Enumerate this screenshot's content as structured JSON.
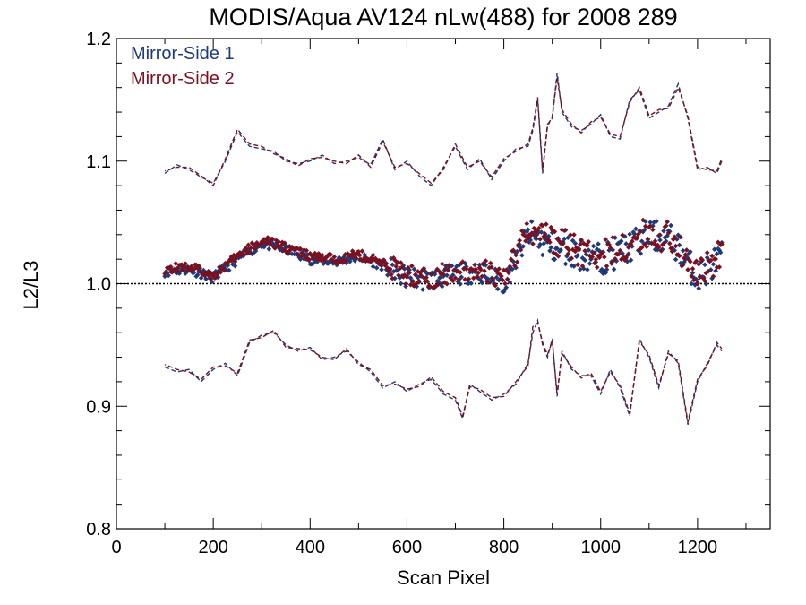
{
  "chart_data": {
    "type": "scatter",
    "title": "MODIS/Aqua AV124 nLw(488) for 2008 289",
    "xlabel": "Scan Pixel",
    "ylabel": "L2/L3",
    "xlim": [
      0,
      1350
    ],
    "ylim": [
      0.8,
      1.2
    ],
    "x_ticks": [
      0,
      200,
      400,
      600,
      800,
      1000,
      1200
    ],
    "x_tick_labels": [
      "0",
      "200",
      "400",
      "600",
      "800",
      "1000",
      "1200"
    ],
    "y_ticks": [
      0.8,
      0.9,
      1.0,
      1.1,
      1.2
    ],
    "y_tick_labels": [
      "0.8",
      "0.9",
      "1.0",
      "1.1",
      "1.2"
    ],
    "reference_line_y": 1.0,
    "legend_position": "top-left",
    "colors": {
      "mirror_side_1": "#1f3a78",
      "mirror_side_2": "#7a1020"
    },
    "series": [
      {
        "name": "Mirror-Side 1",
        "color": "#1f3a78",
        "median_x": [
          100,
          150,
          200,
          250,
          300,
          350,
          400,
          450,
          500,
          550,
          600,
          650,
          700,
          750,
          800,
          850,
          900,
          950,
          1000,
          1050,
          1100,
          1150,
          1200,
          1250
        ],
        "median_y": [
          1.01,
          1.012,
          1.005,
          1.02,
          1.033,
          1.028,
          1.02,
          1.018,
          1.022,
          1.015,
          1.005,
          1.003,
          1.008,
          1.01,
          1.0,
          1.04,
          1.03,
          1.025,
          1.02,
          1.028,
          1.04,
          1.035,
          1.005,
          1.022
        ],
        "upper_x": [
          100,
          125,
          150,
          175,
          200,
          225,
          250,
          275,
          300,
          325,
          350,
          375,
          400,
          425,
          450,
          475,
          500,
          525,
          550,
          575,
          600,
          625,
          650,
          675,
          700,
          725,
          750,
          775,
          800,
          825,
          850,
          860,
          870,
          880,
          890,
          900,
          910,
          920,
          940,
          960,
          980,
          1000,
          1020,
          1040,
          1060,
          1080,
          1100,
          1120,
          1140,
          1160,
          1180,
          1200,
          1220,
          1240,
          1250
        ],
        "upper_y": [
          1.09,
          1.097,
          1.093,
          1.087,
          1.082,
          1.1,
          1.124,
          1.112,
          1.11,
          1.108,
          1.1,
          1.098,
          1.1,
          1.105,
          1.098,
          1.1,
          1.103,
          1.097,
          1.118,
          1.093,
          1.1,
          1.088,
          1.08,
          1.095,
          1.112,
          1.093,
          1.102,
          1.085,
          1.1,
          1.11,
          1.112,
          1.125,
          1.15,
          1.09,
          1.13,
          1.135,
          1.172,
          1.14,
          1.128,
          1.125,
          1.13,
          1.138,
          1.12,
          1.118,
          1.15,
          1.158,
          1.135,
          1.14,
          1.145,
          1.163,
          1.135,
          1.093,
          1.095,
          1.09,
          1.1
        ],
        "lower_x": [
          100,
          125,
          150,
          175,
          200,
          225,
          250,
          275,
          300,
          325,
          350,
          375,
          400,
          425,
          450,
          475,
          500,
          525,
          550,
          575,
          600,
          625,
          650,
          675,
          700,
          715,
          730,
          750,
          775,
          800,
          825,
          850,
          860,
          870,
          880,
          890,
          900,
          910,
          920,
          940,
          960,
          980,
          1000,
          1020,
          1040,
          1060,
          1080,
          1100,
          1120,
          1140,
          1160,
          1180,
          1200,
          1220,
          1240,
          1250
        ],
        "lower_y": [
          0.932,
          0.928,
          0.93,
          0.92,
          0.93,
          0.935,
          0.925,
          0.952,
          0.958,
          0.96,
          0.95,
          0.945,
          0.948,
          0.938,
          0.94,
          0.945,
          0.936,
          0.928,
          0.915,
          0.92,
          0.912,
          0.918,
          0.922,
          0.91,
          0.905,
          0.89,
          0.918,
          0.912,
          0.905,
          0.91,
          0.918,
          0.935,
          0.96,
          0.97,
          0.95,
          0.94,
          0.955,
          0.908,
          0.945,
          0.93,
          0.925,
          0.925,
          0.91,
          0.93,
          0.915,
          0.892,
          0.955,
          0.94,
          0.915,
          0.945,
          0.935,
          0.885,
          0.92,
          0.935,
          0.95,
          0.945
        ]
      },
      {
        "name": "Mirror-Side 2",
        "color": "#7a1020",
        "median_x": [
          100,
          150,
          200,
          250,
          300,
          350,
          400,
          450,
          500,
          550,
          600,
          650,
          700,
          750,
          800,
          850,
          900,
          950,
          1000,
          1050,
          1100,
          1150,
          1200,
          1250
        ],
        "median_y": [
          1.012,
          1.014,
          1.007,
          1.022,
          1.035,
          1.03,
          1.022,
          1.02,
          1.024,
          1.017,
          1.007,
          1.005,
          1.01,
          1.012,
          1.003,
          1.045,
          1.035,
          1.028,
          1.022,
          1.03,
          1.042,
          1.037,
          1.007,
          1.024
        ],
        "upper_x": [
          100,
          125,
          150,
          175,
          200,
          225,
          250,
          275,
          300,
          325,
          350,
          375,
          400,
          425,
          450,
          475,
          500,
          525,
          550,
          575,
          600,
          625,
          650,
          675,
          700,
          725,
          750,
          775,
          800,
          825,
          850,
          860,
          870,
          880,
          890,
          900,
          910,
          920,
          940,
          960,
          980,
          1000,
          1020,
          1040,
          1060,
          1080,
          1100,
          1120,
          1140,
          1160,
          1180,
          1200,
          1220,
          1240,
          1250
        ],
        "upper_y": [
          1.092,
          1.095,
          1.095,
          1.088,
          1.08,
          1.102,
          1.126,
          1.114,
          1.112,
          1.106,
          1.102,
          1.096,
          1.102,
          1.103,
          1.1,
          1.098,
          1.105,
          1.095,
          1.116,
          1.095,
          1.098,
          1.09,
          1.082,
          1.093,
          1.114,
          1.095,
          1.1,
          1.087,
          1.102,
          1.108,
          1.114,
          1.127,
          1.152,
          1.092,
          1.128,
          1.137,
          1.168,
          1.142,
          1.13,
          1.123,
          1.132,
          1.136,
          1.122,
          1.12,
          1.148,
          1.16,
          1.137,
          1.142,
          1.143,
          1.16,
          1.137,
          1.095,
          1.093,
          1.092,
          1.102
        ],
        "lower_x": [
          100,
          125,
          150,
          175,
          200,
          225,
          250,
          275,
          300,
          325,
          350,
          375,
          400,
          425,
          450,
          475,
          500,
          525,
          550,
          575,
          600,
          625,
          650,
          675,
          700,
          715,
          730,
          750,
          775,
          800,
          825,
          850,
          860,
          870,
          880,
          890,
          900,
          910,
          920,
          940,
          960,
          980,
          1000,
          1020,
          1040,
          1060,
          1080,
          1100,
          1120,
          1140,
          1160,
          1180,
          1200,
          1220,
          1240,
          1250
        ],
        "lower_y": [
          0.934,
          0.93,
          0.928,
          0.922,
          0.932,
          0.933,
          0.927,
          0.954,
          0.956,
          0.962,
          0.948,
          0.947,
          0.946,
          0.94,
          0.938,
          0.947,
          0.934,
          0.93,
          0.917,
          0.918,
          0.914,
          0.916,
          0.924,
          0.912,
          0.907,
          0.892,
          0.916,
          0.914,
          0.907,
          0.908,
          0.92,
          0.933,
          0.965,
          0.968,
          0.952,
          0.942,
          0.953,
          0.91,
          0.943,
          0.932,
          0.923,
          0.927,
          0.912,
          0.928,
          0.917,
          0.894,
          0.953,
          0.942,
          0.917,
          0.943,
          0.937,
          0.887,
          0.922,
          0.933,
          0.952,
          0.947
        ]
      }
    ]
  }
}
